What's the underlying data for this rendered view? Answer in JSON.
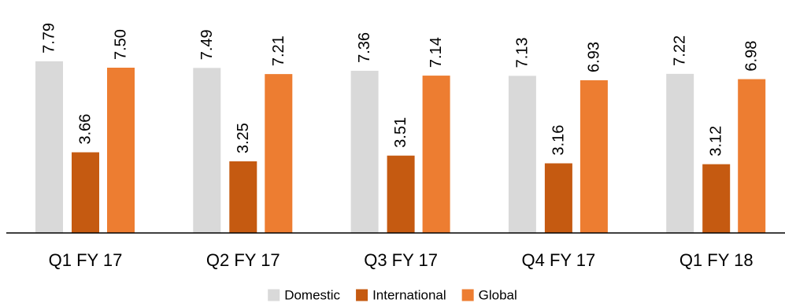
{
  "chart_data": {
    "type": "bar",
    "categories": [
      "Q1 FY 17",
      "Q2 FY 17",
      "Q3 FY 17",
      "Q4 FY 17",
      "Q1 FY 18"
    ],
    "series": [
      {
        "name": "Domestic",
        "color": "#d9d9d9",
        "values": [
          7.79,
          7.49,
          7.36,
          7.13,
          7.22
        ],
        "labels": [
          "7.79",
          "7.49",
          "7.36",
          "7.13",
          "7.22"
        ]
      },
      {
        "name": "International",
        "color": "#c55a11",
        "values": [
          3.66,
          3.25,
          3.51,
          3.16,
          3.12
        ],
        "labels": [
          "3.66",
          "3.25",
          "3.51",
          "3.16",
          "3.12"
        ]
      },
      {
        "name": "Global",
        "color": "#ed7d31",
        "values": [
          7.5,
          7.21,
          7.14,
          6.93,
          6.98
        ],
        "labels": [
          "7.50",
          "7.21",
          "7.14",
          "6.93",
          "6.98"
        ]
      }
    ],
    "ylim": [
      0,
      8
    ],
    "grid": false,
    "legend_position": "bottom",
    "value_labels_rotated": true
  }
}
